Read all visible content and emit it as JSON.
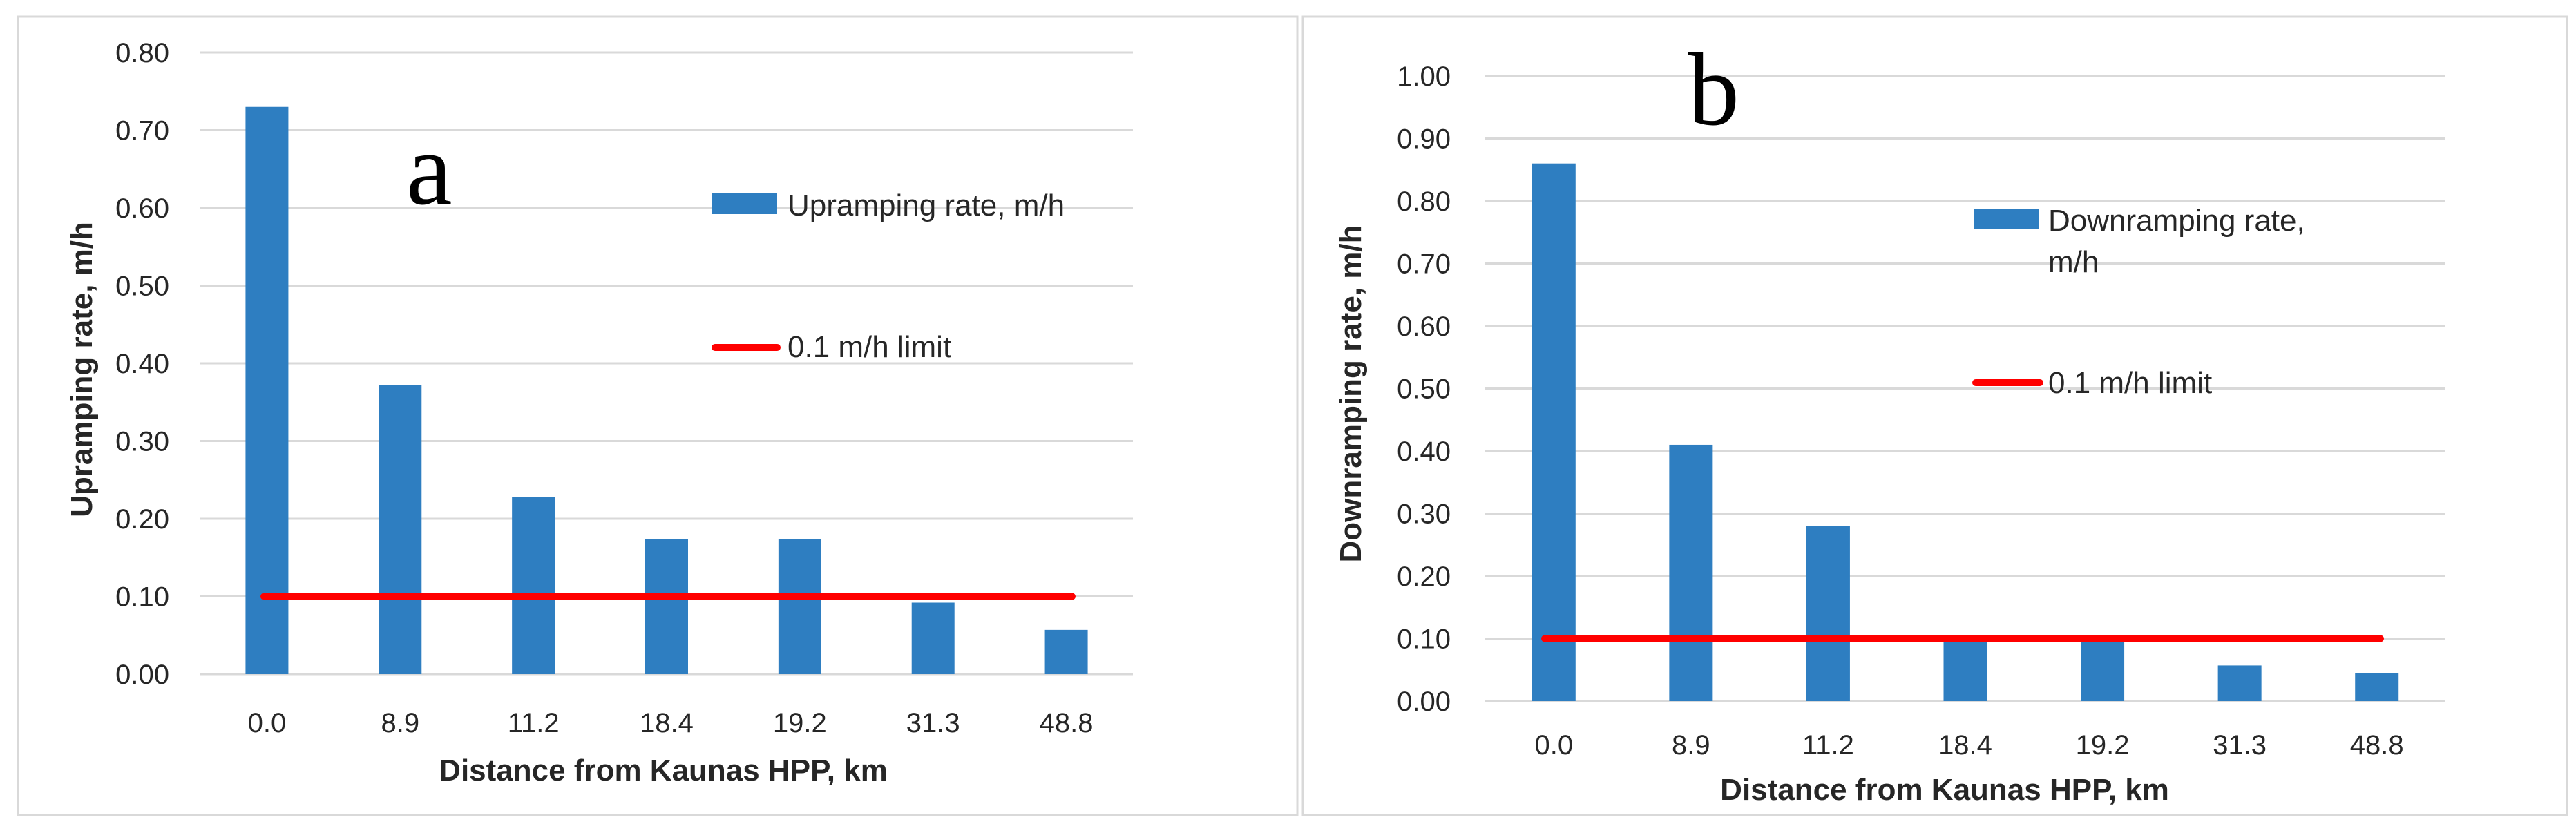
{
  "chart_data": [
    {
      "type": "bar",
      "panel_label": "a",
      "categories": [
        "0.0",
        "8.9",
        "11.2",
        "18.4",
        "19.2",
        "31.3",
        "48.8"
      ],
      "series": [
        {
          "name": "Upramping rate, m/h",
          "kind": "bar",
          "color": "#2E7EC1",
          "values": [
            0.73,
            0.372,
            0.228,
            0.174,
            0.174,
            0.092,
            0.057
          ]
        },
        {
          "name": "0.1 m/h limit",
          "kind": "line",
          "color": "#FF0000",
          "values": [
            0.1,
            0.1,
            0.1,
            0.1,
            0.1,
            0.1,
            0.1
          ]
        }
      ],
      "xlabel": "Distance from Kaunas HPP, km",
      "ylabel": "Upramping rate, m/h",
      "ylim": [
        0,
        0.8
      ],
      "yticks": [
        "0.00",
        "0.10",
        "0.20",
        "0.30",
        "0.40",
        "0.50",
        "0.60",
        "0.70",
        "0.80"
      ],
      "grid": true,
      "legend": [
        "Upramping rate, m/h",
        "0.1 m/h limit"
      ],
      "legend_position": "right"
    },
    {
      "type": "bar",
      "panel_label": "b",
      "categories": [
        "0.0",
        "8.9",
        "11.2",
        "18.4",
        "19.2",
        "31.3",
        "48.8"
      ],
      "series": [
        {
          "name": "Downramping rate, m/h",
          "kind": "bar",
          "color": "#2E7EC1",
          "values": [
            0.86,
            0.41,
            0.28,
            0.1,
            0.1,
            0.057,
            0.045
          ]
        },
        {
          "name": "0.1 m/h limit",
          "kind": "line",
          "color": "#FF0000",
          "values": [
            0.1,
            0.1,
            0.1,
            0.1,
            0.1,
            0.1,
            0.1
          ]
        }
      ],
      "xlabel": "Distance from Kaunas HPP, km",
      "ylabel": "Downramping rate, m/h",
      "ylim": [
        0,
        1.0
      ],
      "yticks": [
        "0.00",
        "0.10",
        "0.20",
        "0.30",
        "0.40",
        "0.50",
        "0.60",
        "0.70",
        "0.80",
        "0.90",
        "1.00"
      ],
      "grid": true,
      "legend": [
        "Downramping rate,",
        "m/h",
        "0.1 m/h limit"
      ],
      "legend_position": "right"
    }
  ]
}
